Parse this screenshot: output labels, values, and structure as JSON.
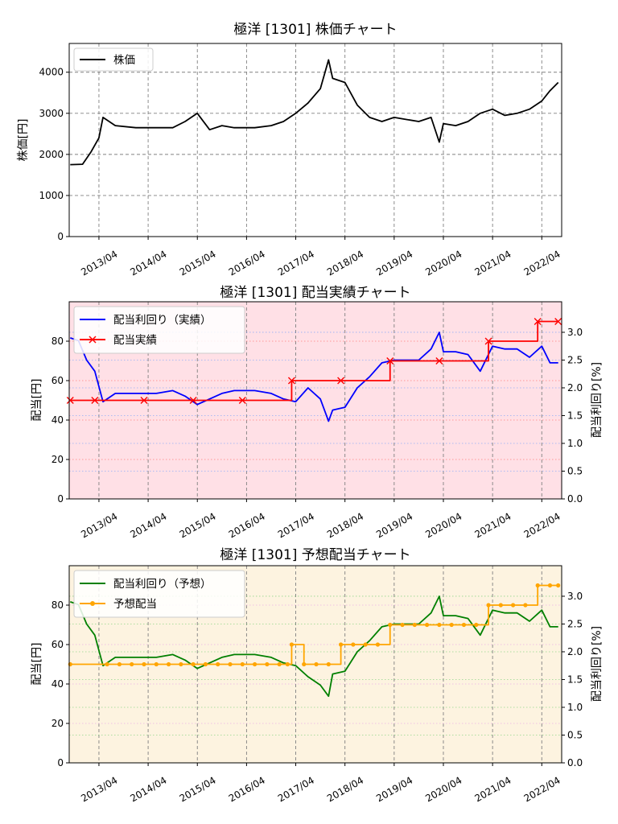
{
  "xticks": [
    "2013/04",
    "2014/04",
    "2015/04",
    "2016/04",
    "2017/04",
    "2018/04",
    "2019/04",
    "2020/04",
    "2021/04",
    "2022/04"
  ],
  "colors": {
    "price": "#000000",
    "yield_actual": "#0000ff",
    "div_actual": "#ff0000",
    "yield_forecast": "#008000",
    "div_forecast": "#ffa500",
    "fill_actual": "#ffe0e6",
    "fill_forecast": "#fdf3e0"
  },
  "chart_data": [
    {
      "type": "line",
      "title": "極洋 [1301]  株価チャート",
      "ylabel": "株価[円]",
      "ylim": [
        0,
        4700
      ],
      "yticks": [
        "0",
        "1000",
        "2000",
        "3000",
        "4000"
      ],
      "legend": "top-left",
      "grid": true,
      "series": [
        {
          "name": "株価",
          "x": [
            "2012/09",
            "2012/12",
            "2013/02",
            "2013/04",
            "2013/05",
            "2013/08",
            "2014/01",
            "2014/06",
            "2014/10",
            "2015/01",
            "2015/04",
            "2015/07",
            "2015/10",
            "2016/01",
            "2016/06",
            "2016/10",
            "2017/01",
            "2017/04",
            "2017/07",
            "2017/10",
            "2017/12",
            "2018/01",
            "2018/04",
            "2018/07",
            "2018/10",
            "2019/01",
            "2019/04",
            "2019/07",
            "2019/10",
            "2020/01",
            "2020/03",
            "2020/04",
            "2020/07",
            "2020/10",
            "2021/01",
            "2021/04",
            "2021/07",
            "2021/10",
            "2022/01",
            "2022/04",
            "2022/06",
            "2022/08"
          ],
          "values": [
            1750,
            1760,
            2050,
            2400,
            2900,
            2700,
            2650,
            2650,
            2650,
            2800,
            3000,
            2600,
            2700,
            2650,
            2650,
            2700,
            2800,
            3000,
            3250,
            3600,
            4300,
            3850,
            3750,
            3200,
            2900,
            2800,
            2900,
            2850,
            2800,
            2900,
            2300,
            2750,
            2700,
            2800,
            3000,
            3100,
            2950,
            3000,
            3100,
            3300,
            3550,
            3750
          ]
        }
      ]
    },
    {
      "type": "line",
      "title": "極洋 [1301]  配当実績チャート",
      "ylabel": "配当[円]",
      "y2label": "配当利回り[%]",
      "ylim": [
        0,
        100
      ],
      "y2lim": [
        0,
        3.55
      ],
      "yticks": [
        "0",
        "20",
        "40",
        "60",
        "80"
      ],
      "y2ticks": [
        "0.0",
        "0.5",
        "1.0",
        "1.5",
        "2.0",
        "2.5",
        "3.0"
      ],
      "legend": "top-left",
      "series": [
        {
          "name": "配当利回り（実績）",
          "axis": "right",
          "x": [
            "2012/09",
            "2012/11",
            "2013/01",
            "2013/03",
            "2013/05",
            "2013/08",
            "2014/01",
            "2014/06",
            "2014/10",
            "2015/01",
            "2015/04",
            "2015/07",
            "2015/10",
            "2016/01",
            "2016/06",
            "2016/10",
            "2017/01",
            "2017/04",
            "2017/07",
            "2017/10",
            "2017/12",
            "2018/01",
            "2018/04",
            "2018/07",
            "2018/10",
            "2019/01",
            "2019/04",
            "2019/07",
            "2019/10",
            "2020/01",
            "2020/03",
            "2020/04",
            "2020/07",
            "2020/10",
            "2021/01",
            "2021/04",
            "2021/07",
            "2021/10",
            "2022/01",
            "2022/04",
            "2022/06",
            "2022/08"
          ],
          "values": [
            2.9,
            2.85,
            2.5,
            2.3,
            1.75,
            1.9,
            1.9,
            1.9,
            1.95,
            1.85,
            1.7,
            1.8,
            1.9,
            1.95,
            1.95,
            1.9,
            1.8,
            1.75,
            2.0,
            1.8,
            1.4,
            1.6,
            1.65,
            2.0,
            2.2,
            2.45,
            2.5,
            2.5,
            2.5,
            2.7,
            3.0,
            2.65,
            2.65,
            2.6,
            2.3,
            2.75,
            2.7,
            2.7,
            2.55,
            2.75,
            2.45,
            2.45
          ]
        },
        {
          "name": "配当実績",
          "axis": "left",
          "step": true,
          "markers": "x",
          "x": [
            "2012/09",
            "2013/03",
            "2014/03",
            "2015/03",
            "2016/03",
            "2017/03",
            "2018/03",
            "2019/03",
            "2020/03",
            "2021/03",
            "2022/03",
            "2022/08"
          ],
          "values": [
            50,
            50,
            50,
            50,
            50,
            60,
            60,
            70,
            70,
            80,
            90,
            90
          ]
        }
      ]
    },
    {
      "type": "line",
      "title": "極洋 [1301]  予想配当チャート",
      "ylabel": "配当[円]",
      "y2label": "配当利回り[%]",
      "ylim": [
        0,
        100
      ],
      "y2lim": [
        0,
        3.55
      ],
      "yticks": [
        "0",
        "20",
        "40",
        "60",
        "80"
      ],
      "y2ticks": [
        "0.0",
        "0.5",
        "1.0",
        "1.5",
        "2.0",
        "2.5",
        "3.0"
      ],
      "legend": "top-left",
      "series": [
        {
          "name": "配当利回り（予想）",
          "axis": "right",
          "x": [
            "2012/09",
            "2012/11",
            "2013/01",
            "2013/03",
            "2013/05",
            "2013/08",
            "2014/01",
            "2014/06",
            "2014/10",
            "2015/01",
            "2015/04",
            "2015/07",
            "2015/10",
            "2016/01",
            "2016/06",
            "2016/10",
            "2017/01",
            "2017/04",
            "2017/07",
            "2017/10",
            "2017/12",
            "2018/01",
            "2018/04",
            "2018/07",
            "2018/10",
            "2019/01",
            "2019/04",
            "2019/07",
            "2019/10",
            "2020/01",
            "2020/03",
            "2020/04",
            "2020/07",
            "2020/10",
            "2021/01",
            "2021/04",
            "2021/07",
            "2021/10",
            "2022/01",
            "2022/04",
            "2022/06",
            "2022/08"
          ],
          "values": [
            2.9,
            2.85,
            2.5,
            2.3,
            1.75,
            1.9,
            1.9,
            1.9,
            1.95,
            1.85,
            1.7,
            1.8,
            1.9,
            1.95,
            1.95,
            1.9,
            1.8,
            1.75,
            1.55,
            1.4,
            1.2,
            1.6,
            1.65,
            2.0,
            2.2,
            2.45,
            2.5,
            2.5,
            2.5,
            2.7,
            3.0,
            2.65,
            2.65,
            2.6,
            2.3,
            2.75,
            2.7,
            2.7,
            2.55,
            2.75,
            2.45,
            2.45
          ]
        },
        {
          "name": "予想配当",
          "axis": "left",
          "step": true,
          "markers": "o",
          "x": [
            "2012/09",
            "2013/06",
            "2013/09",
            "2013/12",
            "2014/03",
            "2014/06",
            "2014/09",
            "2014/12",
            "2015/03",
            "2015/06",
            "2015/09",
            "2015/12",
            "2016/03",
            "2016/06",
            "2016/09",
            "2016/12",
            "2017/02",
            "2017/03",
            "2017/06",
            "2017/09",
            "2017/12",
            "2018/03",
            "2018/06",
            "2018/09",
            "2018/12",
            "2019/03",
            "2019/06",
            "2019/09",
            "2019/12",
            "2020/03",
            "2020/06",
            "2020/09",
            "2020/12",
            "2021/03",
            "2021/06",
            "2021/09",
            "2021/12",
            "2022/03",
            "2022/06",
            "2022/08"
          ],
          "values": [
            50,
            50,
            50,
            50,
            50,
            50,
            50,
            50,
            50,
            50,
            50,
            50,
            50,
            50,
            50,
            50,
            50,
            60,
            50,
            50,
            50,
            60,
            60,
            60,
            60,
            70,
            70,
            70,
            70,
            70,
            70,
            70,
            70,
            80,
            80,
            80,
            80,
            90,
            90,
            90
          ]
        }
      ]
    }
  ]
}
